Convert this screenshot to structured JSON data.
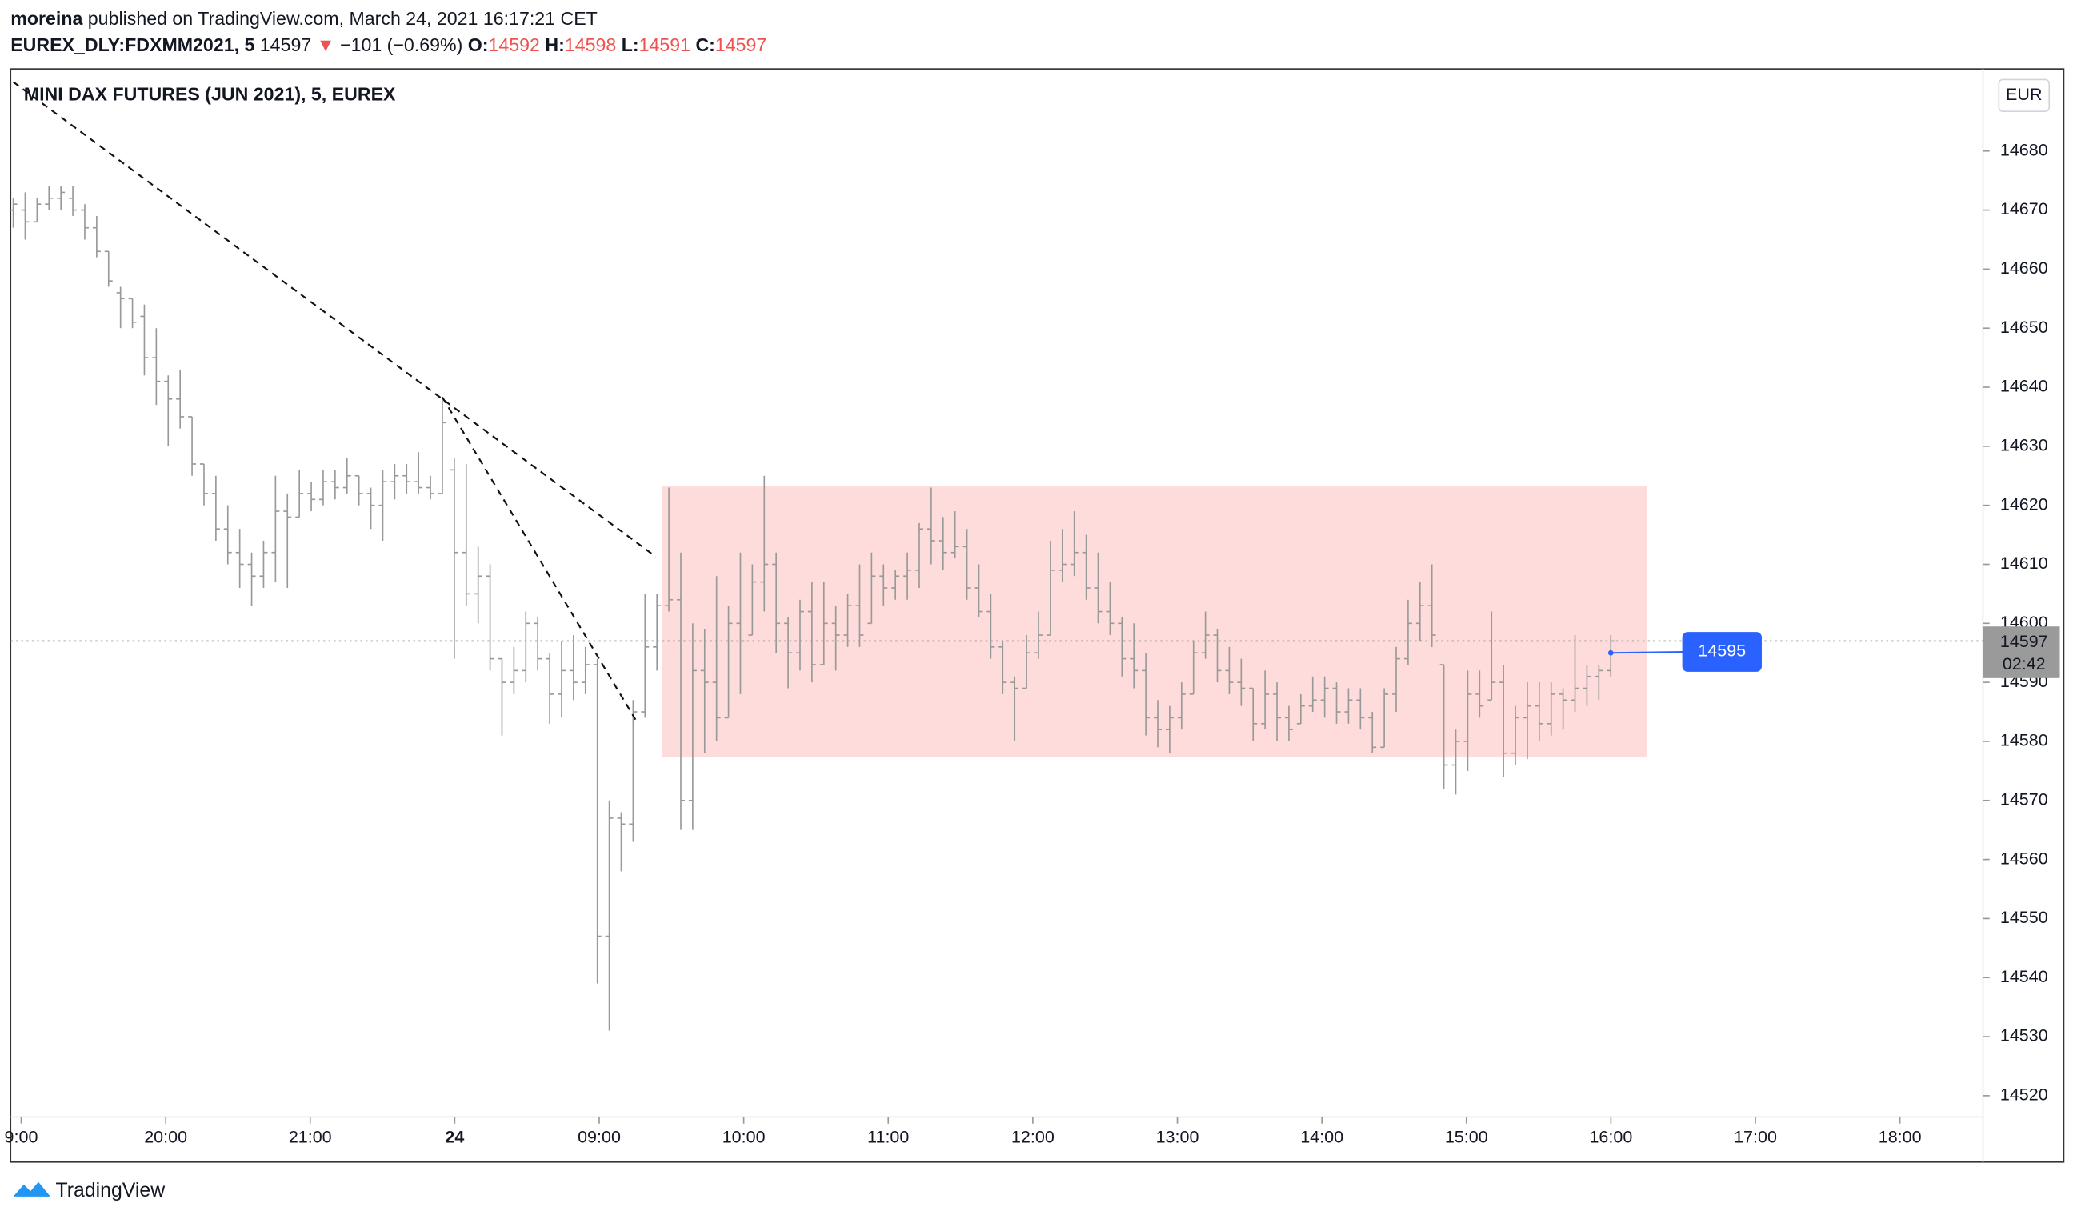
{
  "header": {
    "author": "moreina",
    "published": " published on TradingView.com, March 24, 2021 16:17:21 CET",
    "symbol": "EUREX_DLY:FDXMM2021, 5",
    "price": "14597",
    "arrow": "▼",
    "change": "−101 (−0.69%)",
    "o_label": "O:",
    "o": "14592",
    "h_label": "H:",
    "h": "14598",
    "l_label": "L:",
    "l": "14591",
    "c_label": "C:",
    "c": "14597"
  },
  "footer": {
    "brand": "TradingView"
  },
  "chart_data": {
    "type": "ohlc",
    "title": "MINI DAX FUTURES (JUN 2021), 5, EUREX",
    "currency": "EUR",
    "color": "#999999",
    "ylim": [
      14516.4,
      14693.9
    ],
    "yticks": [
      14520,
      14530,
      14540,
      14550,
      14560,
      14570,
      14580,
      14590,
      14600,
      14610,
      14620,
      14630,
      14640,
      14650,
      14660,
      14670,
      14680
    ],
    "xtick_labels": [
      "9:00",
      "20:00",
      "21:00",
      "24",
      "09:00",
      "10:00",
      "11:00",
      "12:00",
      "13:00",
      "14:00",
      "15:00",
      "16:00",
      "17:00",
      "18:00"
    ],
    "last_price": 14597,
    "last_price_label": "14597",
    "countdown": "02:42",
    "callout": {
      "x": 134,
      "value": 14595,
      "label": "14595"
    },
    "rectangle": {
      "x_start": 54.4,
      "x_end": 137,
      "top": 14623.2,
      "bottom": 14577.4,
      "color": "#ffdcdc"
    },
    "trend_lines": [
      {
        "x": [
          0,
          53.9
        ],
        "y": [
          14691.7,
          14611.3
        ]
      },
      {
        "x": [
          36,
          52.2
        ],
        "y": [
          14638.3,
          14583.7
        ]
      }
    ],
    "ohlc": [
      [
        14670,
        14672,
        14667,
        14671
      ],
      [
        14670,
        14673,
        14665,
        14668
      ],
      [
        14668,
        14672,
        14668,
        14671
      ],
      [
        14671,
        14674,
        14670,
        14672
      ],
      [
        14672,
        14674,
        14670,
        14673
      ],
      [
        14672,
        14674,
        14669,
        14670
      ],
      [
        14670,
        14671,
        14665,
        14667
      ],
      [
        14667,
        14669,
        14662,
        14663
      ],
      [
        14663,
        14663,
        14657,
        14658
      ],
      [
        14656,
        14657,
        14650,
        14655
      ],
      [
        14655,
        14655,
        14650,
        14651
      ],
      [
        14652,
        14654,
        14642,
        14645
      ],
      [
        14645,
        14650,
        14637,
        14641
      ],
      [
        14641,
        14642,
        14630,
        14638
      ],
      [
        14638,
        14643,
        14633,
        14635
      ],
      [
        14635,
        14635,
        14625,
        14627
      ],
      [
        14627,
        14627,
        14620,
        14622
      ],
      [
        14622,
        14625,
        14614,
        14616
      ],
      [
        14616,
        14620,
        14610,
        14612
      ],
      [
        14612,
        14616,
        14606,
        14610
      ],
      [
        14610,
        14612,
        14603,
        14608
      ],
      [
        14608,
        14614,
        14606,
        14612
      ],
      [
        14612,
        14625,
        14607,
        14619
      ],
      [
        14619,
        14622,
        14606,
        14618
      ],
      [
        14618,
        14626,
        14618,
        14622
      ],
      [
        14622,
        14624,
        14619,
        14621
      ],
      [
        14621,
        14626,
        14620,
        14624
      ],
      [
        14624,
        14626,
        14621,
        14623
      ],
      [
        14623,
        14628,
        14622,
        14625
      ],
      [
        14625,
        14625,
        14620,
        14622
      ],
      [
        14622,
        14623,
        14616,
        14620
      ],
      [
        14620,
        14626,
        14614,
        14624
      ],
      [
        14624,
        14627,
        14621,
        14625
      ],
      [
        14625,
        14627,
        14622,
        14624
      ],
      [
        14624,
        14629,
        14622,
        14623
      ],
      [
        14623,
        14625,
        14621,
        14622
      ],
      [
        14622,
        14638,
        14622,
        14634
      ],
      [
        14626,
        14628,
        14594,
        14612
      ],
      [
        14612,
        14627,
        14603,
        14605
      ],
      [
        14605,
        14613,
        14600,
        14608
      ],
      [
        14608,
        14610,
        14592,
        14594
      ],
      [
        14594,
        14594,
        14581,
        14590
      ],
      [
        14590,
        14596,
        14588,
        14592
      ],
      [
        14592,
        14602,
        14590,
        14600
      ],
      [
        14600,
        14601,
        14592,
        14594
      ],
      [
        14594,
        14595,
        14583,
        14588
      ],
      [
        14588,
        14597,
        14584,
        14592
      ],
      [
        14592,
        14598,
        14587,
        14590
      ],
      [
        14590,
        14596,
        14588,
        14593
      ],
      [
        14593,
        14594,
        14539,
        14547
      ],
      [
        14547,
        14570,
        14531,
        14567
      ],
      [
        14567,
        14568,
        14558,
        14566
      ],
      [
        14566,
        14587,
        14563,
        14585
      ],
      [
        14585,
        14605,
        14584,
        14596
      ],
      [
        14596,
        14605,
        14592,
        14603
      ],
      [
        14603,
        14623,
        14602,
        14604
      ],
      [
        14604,
        14612,
        14565,
        14570
      ],
      [
        14570,
        14600,
        14565,
        14592
      ],
      [
        14592,
        14599,
        14578,
        14590
      ],
      [
        14590,
        14608,
        14580,
        14584
      ],
      [
        14584,
        14603,
        14584,
        14600
      ],
      [
        14600,
        14612,
        14588,
        14597
      ],
      [
        14598,
        14610,
        14598,
        14607
      ],
      [
        14607,
        14625,
        14602,
        14610
      ],
      [
        14610,
        14612,
        14595,
        14600
      ],
      [
        14600,
        14601,
        14589,
        14595
      ],
      [
        14595,
        14604,
        14592,
        14602
      ],
      [
        14602,
        14607,
        14590,
        14593
      ],
      [
        14593,
        14607,
        14593,
        14600
      ],
      [
        14600,
        14603,
        14592,
        14598
      ],
      [
        14598,
        14605,
        14596,
        14603
      ],
      [
        14603,
        14610,
        14596,
        14598
      ],
      [
        14600,
        14612,
        14600,
        14608
      ],
      [
        14608,
        14610,
        14603,
        14606
      ],
      [
        14606,
        14609,
        14604,
        14608
      ],
      [
        14608,
        14612,
        14604,
        14609
      ],
      [
        14609,
        14617,
        14606,
        14616
      ],
      [
        14616,
        14623,
        14610,
        14614
      ],
      [
        14614,
        14618,
        14609,
        14612
      ],
      [
        14612,
        14619,
        14611,
        14613
      ],
      [
        14613,
        14616,
        14604,
        14606
      ],
      [
        14606,
        14610,
        14601,
        14602
      ],
      [
        14602,
        14605,
        14594,
        14596
      ],
      [
        14596,
        14597,
        14588,
        14590
      ],
      [
        14590,
        14591,
        14580,
        14589
      ],
      [
        14589,
        14598,
        14589,
        14595
      ],
      [
        14595,
        14602,
        14594,
        14598
      ],
      [
        14598,
        14614,
        14598,
        14609
      ],
      [
        14609,
        14616,
        14607,
        14610
      ],
      [
        14610,
        14619,
        14608,
        14612
      ],
      [
        14612,
        14615,
        14604,
        14606
      ],
      [
        14606,
        14612,
        14600,
        14602
      ],
      [
        14602,
        14607,
        14598,
        14600
      ],
      [
        14600,
        14601,
        14591,
        14594
      ],
      [
        14594,
        14600,
        14589,
        14592
      ],
      [
        14592,
        14595,
        14581,
        14584
      ],
      [
        14584,
        14587,
        14579,
        14582
      ],
      [
        14582,
        14586,
        14578,
        14584
      ],
      [
        14584,
        14590,
        14582,
        14588
      ],
      [
        14588,
        14597,
        14588,
        14595
      ],
      [
        14595,
        14602,
        14594,
        14598
      ],
      [
        14598,
        14599,
        14590,
        14592
      ],
      [
        14592,
        14596,
        14588,
        14590
      ],
      [
        14590,
        14594,
        14586,
        14589
      ],
      [
        14589,
        14589,
        14580,
        14583
      ],
      [
        14583,
        14592,
        14582,
        14588
      ],
      [
        14588,
        14590,
        14580,
        14584
      ],
      [
        14584,
        14586,
        14580,
        14582
      ],
      [
        14583,
        14588,
        14583,
        14586
      ],
      [
        14586,
        14591,
        14585,
        14587
      ],
      [
        14587,
        14591,
        14584,
        14589
      ],
      [
        14589,
        14590,
        14583,
        14585
      ],
      [
        14585,
        14589,
        14583,
        14587
      ],
      [
        14587,
        14589,
        14582,
        14584
      ],
      [
        14584,
        14585,
        14578,
        14579
      ],
      [
        14579,
        14589,
        14579,
        14588
      ],
      [
        14588,
        14596,
        14585,
        14594
      ],
      [
        14594,
        14604,
        14593,
        14600
      ],
      [
        14600,
        14607,
        14597,
        14603
      ],
      [
        14603,
        14610,
        14596,
        14598
      ],
      [
        14593,
        14593,
        14572,
        14576
      ],
      [
        14576,
        14582,
        14571,
        14580
      ],
      [
        14580,
        14592,
        14575,
        14588
      ],
      [
        14588,
        14592,
        14584,
        14586
      ],
      [
        14587,
        14602,
        14587,
        14590
      ],
      [
        14590,
        14593,
        14574,
        14578
      ],
      [
        14578,
        14586,
        14576,
        14584
      ],
      [
        14584,
        14590,
        14577,
        14586
      ],
      [
        14586,
        14590,
        14580,
        14583
      ],
      [
        14583,
        14590,
        14581,
        14588
      ],
      [
        14588,
        14589,
        14582,
        14587
      ],
      [
        14587,
        14598,
        14585,
        14589
      ],
      [
        14589,
        14593,
        14586,
        14591
      ],
      [
        14591,
        14593,
        14587,
        14592
      ],
      [
        14592,
        14598,
        14591,
        14597
      ]
    ]
  }
}
